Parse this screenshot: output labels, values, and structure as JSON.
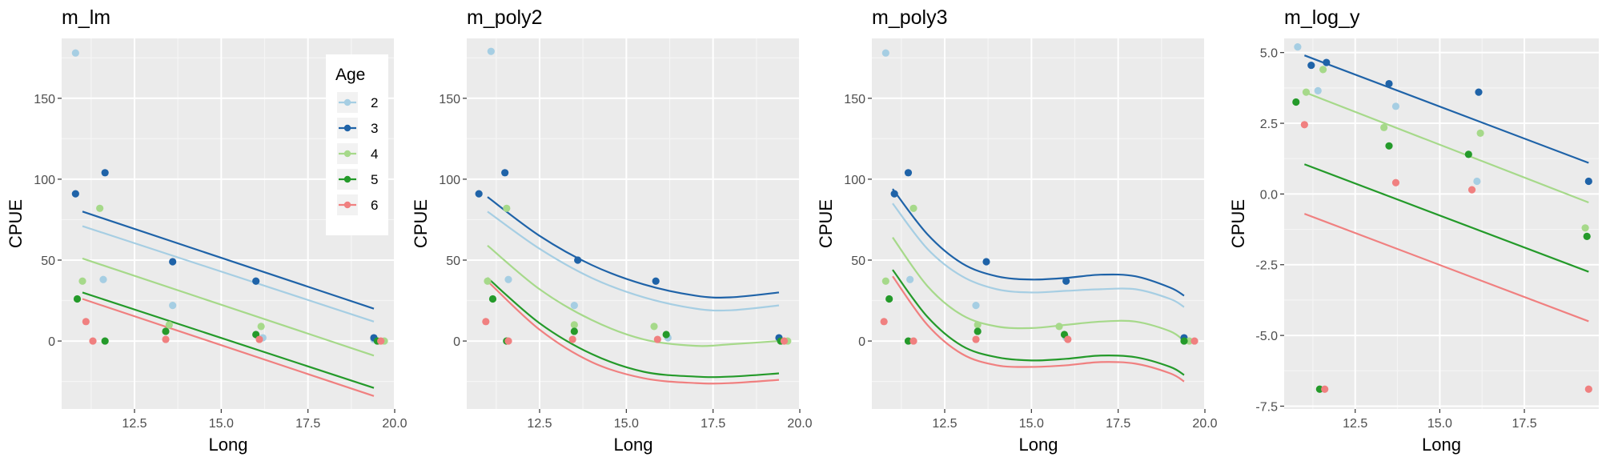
{
  "colors": {
    "panel_bg": "#ebebeb",
    "grid_major": "#ffffff",
    "age_2": "#a6cee3",
    "age_3": "#1f63a8",
    "age_4": "#a6d98a",
    "age_5": "#249a2a",
    "age_6": "#f08080"
  },
  "legend": {
    "title": "Age",
    "placement": "top-right inside first panel",
    "items": [
      {
        "label": "2",
        "age": "2"
      },
      {
        "label": "3",
        "age": "3"
      },
      {
        "label": "4",
        "age": "4"
      },
      {
        "label": "5",
        "age": "5"
      },
      {
        "label": "6",
        "age": "6"
      }
    ]
  },
  "chart_data": [
    {
      "type": "scatter",
      "title": "m_lm",
      "xlabel": "Long",
      "ylabel": "CPUE",
      "xlim": [
        10.4,
        20.0
      ],
      "ylim": [
        -42,
        187
      ],
      "xticks": [
        12.5,
        15.0,
        17.5,
        20.0
      ],
      "xtick_labels": [
        "12.5",
        "15.0",
        "17.5",
        "20.0"
      ],
      "yticks": [
        0,
        50,
        100,
        150
      ],
      "ytick_labels": [
        "0",
        "50",
        "100",
        "150"
      ],
      "grid": true,
      "points": [
        {
          "age": "2",
          "x": 10.8,
          "y": 178
        },
        {
          "age": "2",
          "x": 11.6,
          "y": 38
        },
        {
          "age": "2",
          "x": 13.6,
          "y": 22
        },
        {
          "age": "2",
          "x": 16.0,
          "y": 37
        },
        {
          "age": "2",
          "x": 16.2,
          "y": 2
        },
        {
          "age": "2",
          "x": 19.4,
          "y": 1
        },
        {
          "age": "3",
          "x": 10.8,
          "y": 91
        },
        {
          "age": "3",
          "x": 11.65,
          "y": 104
        },
        {
          "age": "3",
          "x": 13.6,
          "y": 49
        },
        {
          "age": "3",
          "x": 16.0,
          "y": 37
        },
        {
          "age": "3",
          "x": 19.4,
          "y": 2
        },
        {
          "age": "4",
          "x": 11.0,
          "y": 37
        },
        {
          "age": "4",
          "x": 11.5,
          "y": 82
        },
        {
          "age": "4",
          "x": 13.5,
          "y": 10
        },
        {
          "age": "4",
          "x": 16.15,
          "y": 9
        },
        {
          "age": "4",
          "x": 19.7,
          "y": 0
        },
        {
          "age": "5",
          "x": 10.85,
          "y": 26
        },
        {
          "age": "5",
          "x": 11.65,
          "y": 0
        },
        {
          "age": "5",
          "x": 13.4,
          "y": 6
        },
        {
          "age": "5",
          "x": 16.0,
          "y": 4
        },
        {
          "age": "5",
          "x": 19.5,
          "y": 0
        },
        {
          "age": "6",
          "x": 11.1,
          "y": 12
        },
        {
          "age": "6",
          "x": 11.3,
          "y": 0
        },
        {
          "age": "6",
          "x": 13.4,
          "y": 1
        },
        {
          "age": "6",
          "x": 16.1,
          "y": 1
        },
        {
          "age": "6",
          "x": 19.6,
          "y": 0
        }
      ],
      "lines": [
        {
          "age": "2",
          "x": [
            11.0,
            19.4
          ],
          "y": [
            71,
            12
          ]
        },
        {
          "age": "3",
          "x": [
            11.0,
            19.4
          ],
          "y": [
            80,
            20
          ]
        },
        {
          "age": "4",
          "x": [
            11.0,
            19.4
          ],
          "y": [
            51,
            -9
          ]
        },
        {
          "age": "5",
          "x": [
            11.0,
            19.4
          ],
          "y": [
            30,
            -29
          ]
        },
        {
          "age": "6",
          "x": [
            11.0,
            19.4
          ],
          "y": [
            26,
            -34
          ]
        }
      ]
    },
    {
      "type": "scatter",
      "title": "m_poly2",
      "xlabel": "Long",
      "ylabel": "CPUE",
      "xlim": [
        10.4,
        20.0
      ],
      "ylim": [
        -42,
        187
      ],
      "xticks": [
        12.5,
        15.0,
        17.5,
        20.0
      ],
      "xtick_labels": [
        "12.5",
        "15.0",
        "17.5",
        "20.0"
      ],
      "yticks": [
        0,
        50,
        100,
        150
      ],
      "ytick_labels": [
        "0",
        "50",
        "100",
        "150"
      ],
      "grid": true,
      "points": [
        {
          "age": "2",
          "x": 11.1,
          "y": 179
        },
        {
          "age": "2",
          "x": 11.6,
          "y": 38
        },
        {
          "age": "2",
          "x": 13.5,
          "y": 22
        },
        {
          "age": "2",
          "x": 16.2,
          "y": 2
        },
        {
          "age": "3",
          "x": 10.75,
          "y": 91
        },
        {
          "age": "3",
          "x": 11.5,
          "y": 104
        },
        {
          "age": "3",
          "x": 13.6,
          "y": 50
        },
        {
          "age": "3",
          "x": 15.85,
          "y": 37
        },
        {
          "age": "3",
          "x": 19.4,
          "y": 2
        },
        {
          "age": "4",
          "x": 11.0,
          "y": 37
        },
        {
          "age": "4",
          "x": 11.55,
          "y": 82
        },
        {
          "age": "4",
          "x": 13.5,
          "y": 10
        },
        {
          "age": "4",
          "x": 15.8,
          "y": 9
        },
        {
          "age": "4",
          "x": 19.65,
          "y": 0
        },
        {
          "age": "5",
          "x": 11.15,
          "y": 26
        },
        {
          "age": "5",
          "x": 11.55,
          "y": 0
        },
        {
          "age": "5",
          "x": 13.5,
          "y": 6
        },
        {
          "age": "5",
          "x": 16.15,
          "y": 4
        },
        {
          "age": "5",
          "x": 19.45,
          "y": 0
        },
        {
          "age": "6",
          "x": 10.95,
          "y": 12
        },
        {
          "age": "6",
          "x": 11.6,
          "y": 0
        },
        {
          "age": "6",
          "x": 13.45,
          "y": 1
        },
        {
          "age": "6",
          "x": 15.9,
          "y": 1
        },
        {
          "age": "6",
          "x": 19.55,
          "y": 0
        }
      ],
      "curves": [
        {
          "age": "2",
          "x": [
            11.0,
            12.5,
            14.0,
            15.5,
            17.0,
            18.0,
            19.4
          ],
          "y": [
            80,
            57,
            39,
            27,
            20,
            19,
            22
          ]
        },
        {
          "age": "3",
          "x": [
            11.0,
            12.5,
            14.0,
            15.5,
            17.0,
            18.0,
            19.4
          ],
          "y": [
            89,
            65,
            47,
            35,
            28,
            27,
            30
          ]
        },
        {
          "age": "4",
          "x": [
            11.0,
            12.5,
            14.0,
            15.5,
            17.0,
            18.0,
            19.4
          ],
          "y": [
            59,
            32,
            13,
            1,
            -3,
            -2,
            0
          ]
        },
        {
          "age": "5",
          "x": [
            11.0,
            12.5,
            14.0,
            15.5,
            17.0,
            18.0,
            19.4
          ],
          "y": [
            39,
            11,
            -8,
            -19,
            -22,
            -22,
            -20
          ]
        },
        {
          "age": "6",
          "x": [
            11.0,
            12.5,
            14.0,
            15.5,
            17.0,
            18.0,
            19.4
          ],
          "y": [
            37,
            7,
            -13,
            -23,
            -26,
            -26,
            -24
          ]
        }
      ]
    },
    {
      "type": "scatter",
      "title": "m_poly3",
      "xlabel": "Long",
      "ylabel": "CPUE",
      "xlim": [
        10.4,
        20.0
      ],
      "ylim": [
        -42,
        187
      ],
      "xticks": [
        12.5,
        15.0,
        17.5,
        20.0
      ],
      "xtick_labels": [
        "12.5",
        "15.0",
        "17.5",
        "20.0"
      ],
      "yticks": [
        0,
        50,
        100,
        150
      ],
      "ytick_labels": [
        "0",
        "50",
        "100",
        "150"
      ],
      "grid": true,
      "points": [
        {
          "age": "2",
          "x": 10.8,
          "y": 178
        },
        {
          "age": "2",
          "x": 11.5,
          "y": 38
        },
        {
          "age": "2",
          "x": 13.4,
          "y": 22
        },
        {
          "age": "2",
          "x": 16.0,
          "y": 2
        },
        {
          "age": "3",
          "x": 11.05,
          "y": 91
        },
        {
          "age": "3",
          "x": 11.45,
          "y": 104
        },
        {
          "age": "3",
          "x": 13.7,
          "y": 49
        },
        {
          "age": "3",
          "x": 16.0,
          "y": 37
        },
        {
          "age": "3",
          "x": 19.4,
          "y": 2
        },
        {
          "age": "4",
          "x": 10.8,
          "y": 37
        },
        {
          "age": "4",
          "x": 11.6,
          "y": 82
        },
        {
          "age": "4",
          "x": 13.45,
          "y": 10
        },
        {
          "age": "4",
          "x": 15.8,
          "y": 9
        },
        {
          "age": "4",
          "x": 19.55,
          "y": 0
        },
        {
          "age": "5",
          "x": 10.9,
          "y": 26
        },
        {
          "age": "5",
          "x": 11.45,
          "y": 0
        },
        {
          "age": "5",
          "x": 13.45,
          "y": 6
        },
        {
          "age": "5",
          "x": 15.95,
          "y": 4
        },
        {
          "age": "5",
          "x": 19.4,
          "y": 0
        },
        {
          "age": "6",
          "x": 10.75,
          "y": 12
        },
        {
          "age": "6",
          "x": 11.6,
          "y": 0
        },
        {
          "age": "6",
          "x": 13.4,
          "y": 1
        },
        {
          "age": "6",
          "x": 16.05,
          "y": 1
        },
        {
          "age": "6",
          "x": 19.7,
          "y": 0
        }
      ],
      "curves": [
        {
          "age": "2",
          "x": [
            11.0,
            12.0,
            13.0,
            14.0,
            15.0,
            16.0,
            17.0,
            18.0,
            19.0,
            19.4
          ],
          "y": [
            85,
            57,
            40,
            32,
            30,
            31,
            32,
            32,
            26,
            21
          ]
        },
        {
          "age": "3",
          "x": [
            11.0,
            12.0,
            13.0,
            14.0,
            15.0,
            16.0,
            17.0,
            18.0,
            19.0,
            19.4
          ],
          "y": [
            94,
            66,
            48,
            40,
            38,
            39,
            41,
            40,
            33,
            28
          ]
        },
        {
          "age": "4",
          "x": [
            11.0,
            12.0,
            13.0,
            14.0,
            15.0,
            16.0,
            17.0,
            18.0,
            19.0,
            19.4
          ],
          "y": [
            64,
            34,
            16,
            9,
            8,
            10,
            12,
            12,
            6,
            0
          ]
        },
        {
          "age": "5",
          "x": [
            11.0,
            12.0,
            13.0,
            14.0,
            15.0,
            16.0,
            17.0,
            18.0,
            19.0,
            19.4
          ],
          "y": [
            44,
            15,
            -3,
            -10,
            -12,
            -11,
            -9,
            -10,
            -16,
            -21
          ]
        },
        {
          "age": "6",
          "x": [
            11.0,
            12.0,
            13.0,
            14.0,
            15.0,
            16.0,
            17.0,
            18.0,
            19.0,
            19.4
          ],
          "y": [
            40,
            10,
            -8,
            -15,
            -16,
            -15,
            -13,
            -14,
            -20,
            -25
          ]
        }
      ]
    },
    {
      "type": "scatter",
      "title": "m_log_y",
      "xlabel": "Long",
      "ylabel": "CPUE",
      "xlim": [
        10.4,
        19.7
      ],
      "ylim": [
        -7.6,
        5.5
      ],
      "xticks": [
        12.5,
        15.0,
        17.5
      ],
      "xtick_labels": [
        "12.5",
        "15.0",
        "17.5"
      ],
      "yticks": [
        -7.5,
        -5.0,
        -2.5,
        0.0,
        2.5,
        5.0
      ],
      "ytick_labels": [
        "-7.5",
        "-5.0",
        "-2.5",
        "0.0",
        "2.5",
        "5.0"
      ],
      "grid": true,
      "points": [
        {
          "age": "2",
          "x": 10.8,
          "y": 5.2
        },
        {
          "age": "2",
          "x": 11.4,
          "y": 3.65
        },
        {
          "age": "2",
          "x": 13.7,
          "y": 3.1
        },
        {
          "age": "2",
          "x": 16.1,
          "y": 0.45
        },
        {
          "age": "3",
          "x": 11.2,
          "y": 4.55
        },
        {
          "age": "3",
          "x": 11.65,
          "y": 4.65
        },
        {
          "age": "3",
          "x": 13.5,
          "y": 3.9
        },
        {
          "age": "3",
          "x": 16.15,
          "y": 3.6
        },
        {
          "age": "3",
          "x": 19.4,
          "y": 0.45
        },
        {
          "age": "4",
          "x": 11.05,
          "y": 3.6
        },
        {
          "age": "4",
          "x": 11.55,
          "y": 4.4
        },
        {
          "age": "4",
          "x": 13.35,
          "y": 2.35
        },
        {
          "age": "4",
          "x": 16.2,
          "y": 2.15
        },
        {
          "age": "4",
          "x": 19.3,
          "y": -1.2
        },
        {
          "age": "5",
          "x": 10.75,
          "y": 3.25
        },
        {
          "age": "5",
          "x": 11.45,
          "y": -6.9
        },
        {
          "age": "5",
          "x": 13.5,
          "y": 1.7
        },
        {
          "age": "5",
          "x": 15.85,
          "y": 1.4
        },
        {
          "age": "5",
          "x": 19.35,
          "y": -1.5
        },
        {
          "age": "6",
          "x": 11.0,
          "y": 2.45
        },
        {
          "age": "6",
          "x": 11.6,
          "y": -6.9
        },
        {
          "age": "6",
          "x": 13.7,
          "y": 0.4
        },
        {
          "age": "6",
          "x": 15.95,
          "y": 0.15
        },
        {
          "age": "6",
          "x": 19.4,
          "y": -6.9
        }
      ],
      "lines": [
        {
          "age": "3",
          "x": [
            11.0,
            19.4
          ],
          "y": [
            4.9,
            1.1
          ]
        },
        {
          "age": "4",
          "x": [
            11.0,
            19.4
          ],
          "y": [
            3.6,
            -0.3
          ]
        },
        {
          "age": "5",
          "x": [
            11.0,
            19.4
          ],
          "y": [
            1.05,
            -2.75
          ]
        },
        {
          "age": "6",
          "x": [
            11.0,
            19.4
          ],
          "y": [
            -0.7,
            -4.5
          ]
        }
      ]
    }
  ]
}
